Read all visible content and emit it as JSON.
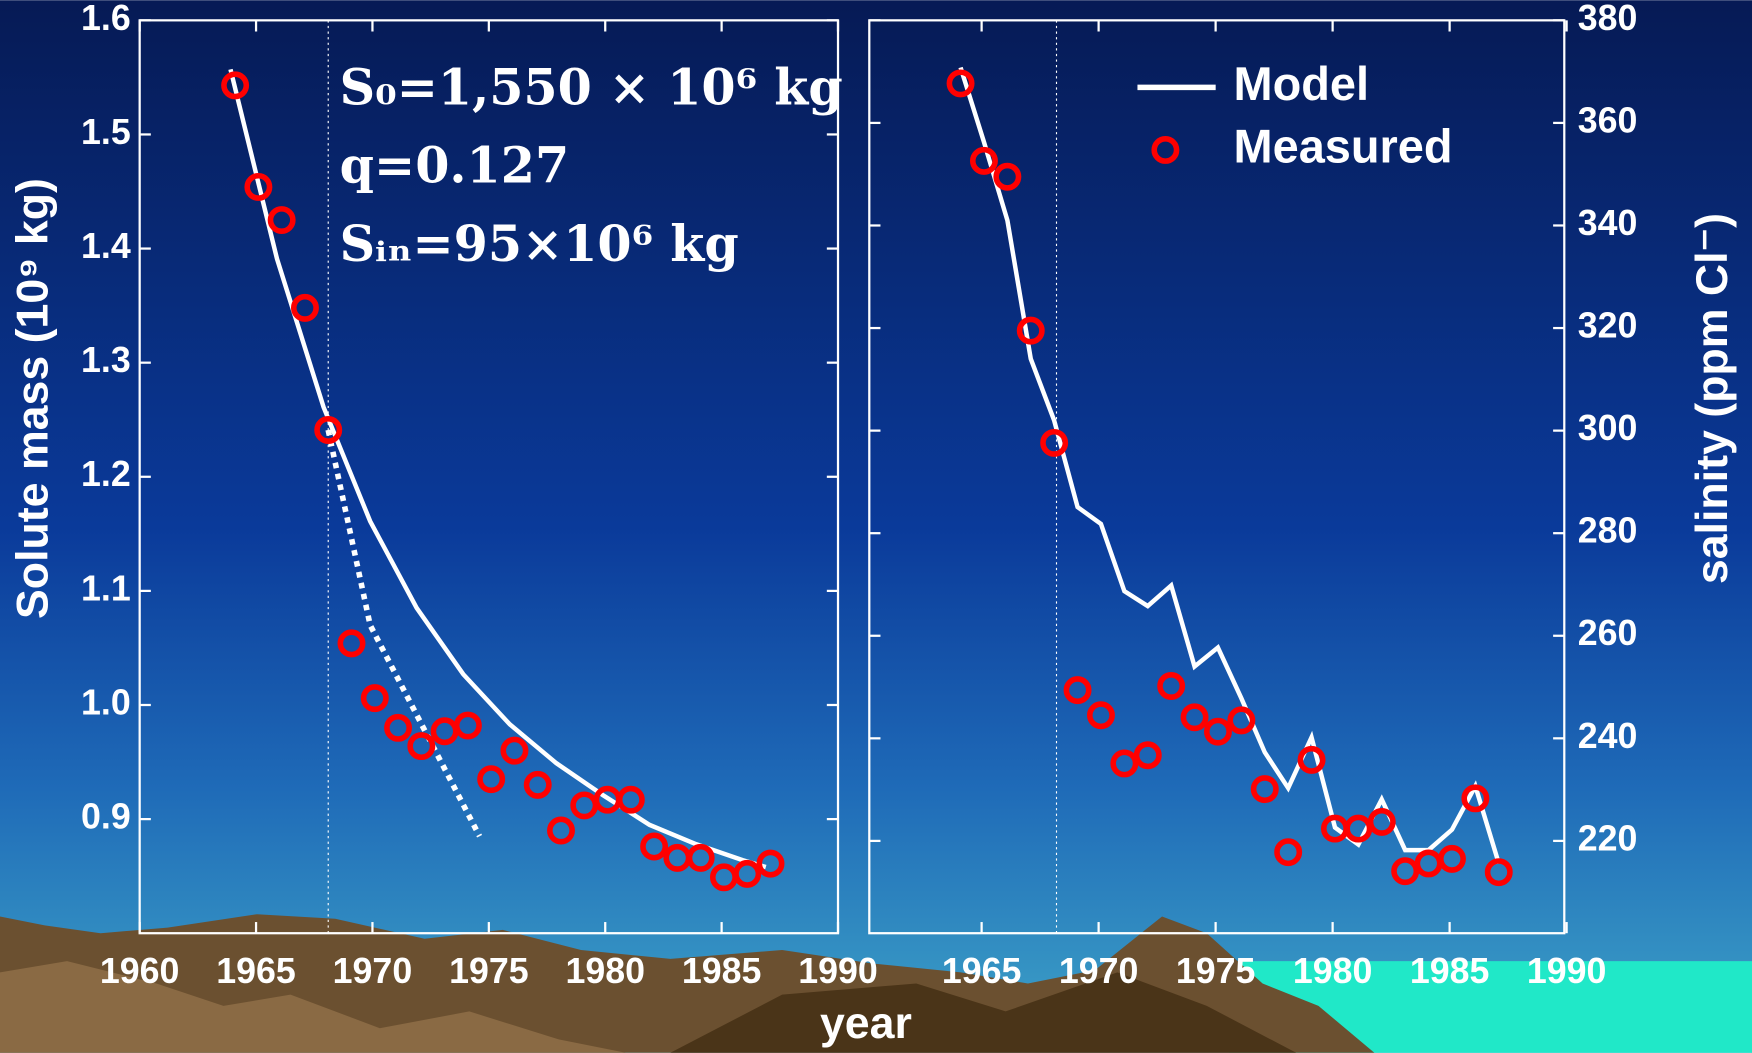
{
  "chart_data": [
    {
      "type": "line",
      "ylabel": "Solute mass  (10⁹ kg)",
      "annotations": [
        "S₀=1,550 × 10⁶  kg",
        "q=0.127",
        "Sᵢₙ=95×10⁶ kg"
      ],
      "xlim": [
        1960,
        1990
      ],
      "xticks": [
        1960,
        1965,
        1970,
        1975,
        1980,
        1985,
        1990
      ],
      "ylim": [
        0.8,
        1.6
      ],
      "yticks": [
        0.9,
        {
          "value": 1,
          "label": "1.0"
        },
        1.1,
        1.2,
        1.3,
        1.4,
        1.5,
        1.6
      ],
      "vline": 1968.1,
      "series": [
        {
          "kind": "line",
          "color": "#ffffff",
          "x": [
            1963.9,
            1965.9,
            1967.9,
            1969.9,
            1971.9,
            1973.9,
            1975.9,
            1977.9,
            1979.9,
            1981.9,
            1983.9,
            1985.9,
            1986.9
          ],
          "values": [
            1.557,
            1.391,
            1.261,
            1.161,
            1.085,
            1.027,
            0.983,
            0.949,
            0.921,
            0.895,
            0.878,
            0.864,
            0.858
          ]
        },
        {
          "kind": "dotted",
          "color": "#ffffff",
          "x": [
            1968.1,
            1969.9,
            1974.6
          ],
          "values": [
            1.241,
            1.07,
            0.885
          ]
        },
        {
          "kind": "scatter",
          "color": "#ff0000",
          "x": [
            1964.1,
            1965.1,
            1966.1,
            1967.1,
            1968.1,
            1969.1,
            1970.1,
            1971.1,
            1972.1,
            1973.1,
            1974.1,
            1975.1,
            1976.1,
            1977.1,
            1978.1,
            1979.1,
            1980.1,
            1981.1,
            1982.1,
            1983.1,
            1984.1,
            1985.1,
            1986.1,
            1987.1
          ],
          "values": [
            1.543,
            1.454,
            1.425,
            1.348,
            1.241,
            1.054,
            1.006,
            0.98,
            0.964,
            0.977,
            0.982,
            0.935,
            0.96,
            0.93,
            0.89,
            0.912,
            0.917,
            0.917,
            0.876,
            0.866,
            0.866,
            0.849,
            0.852,
            0.861
          ]
        }
      ]
    },
    {
      "type": "line",
      "ylabel": "salinity  (ppm Cl⁻)",
      "xlabel": "year",
      "xlim": [
        1960.2,
        1989.9
      ],
      "xticks": [
        1965,
        1970,
        1975,
        1980,
        1985,
        1990
      ],
      "ylim": [
        202,
        380
      ],
      "yticks": [
        220,
        240,
        260,
        280,
        300,
        320,
        340,
        360,
        380
      ],
      "vline": 1968.2,
      "legend": "upper right",
      "series": [
        {
          "name": "Model",
          "kind": "line",
          "color": "#ffffff",
          "x": [
            1964.1,
            1965.1,
            1966.1,
            1967.1,
            1968.1,
            1969.1,
            1970.1,
            1971.1,
            1972.1,
            1973.1,
            1974.1,
            1975.1,
            1976.1,
            1977.1,
            1978.1,
            1979.1,
            1980.1,
            1981.1,
            1982.1,
            1983.1,
            1984.1,
            1985.1,
            1986.1,
            1987.1
          ],
          "values": [
            370.8,
            356.3,
            341.0,
            314.0,
            302.0,
            285.1,
            281.8,
            268.7,
            265.8,
            269.8,
            254.0,
            257.7,
            247.8,
            237.3,
            230.3,
            240.2,
            222.6,
            219.3,
            228.1,
            218.2,
            218.2,
            222.2,
            230.7,
            215.6
          ]
        },
        {
          "name": "Measured",
          "kind": "scatter",
          "color": "#ff0000",
          "x": [
            1964.1,
            1965.1,
            1966.1,
            1967.1,
            1968.1,
            1969.1,
            1970.1,
            1971.1,
            1972.1,
            1973.1,
            1974.1,
            1975.1,
            1976.1,
            1977.1,
            1978.1,
            1979.1,
            1980.1,
            1981.1,
            1982.1,
            1983.1,
            1984.1,
            1985.1,
            1986.1,
            1987.1
          ],
          "values": [
            367.7,
            352.6,
            349.5,
            319.5,
            297.6,
            249.4,
            244.5,
            235.1,
            236.7,
            250.2,
            244.1,
            241.3,
            243.5,
            230.1,
            217.8,
            235.8,
            222.4,
            222.4,
            223.7,
            214.1,
            215.6,
            216.5,
            228.3,
            213.9
          ]
        }
      ]
    }
  ]
}
